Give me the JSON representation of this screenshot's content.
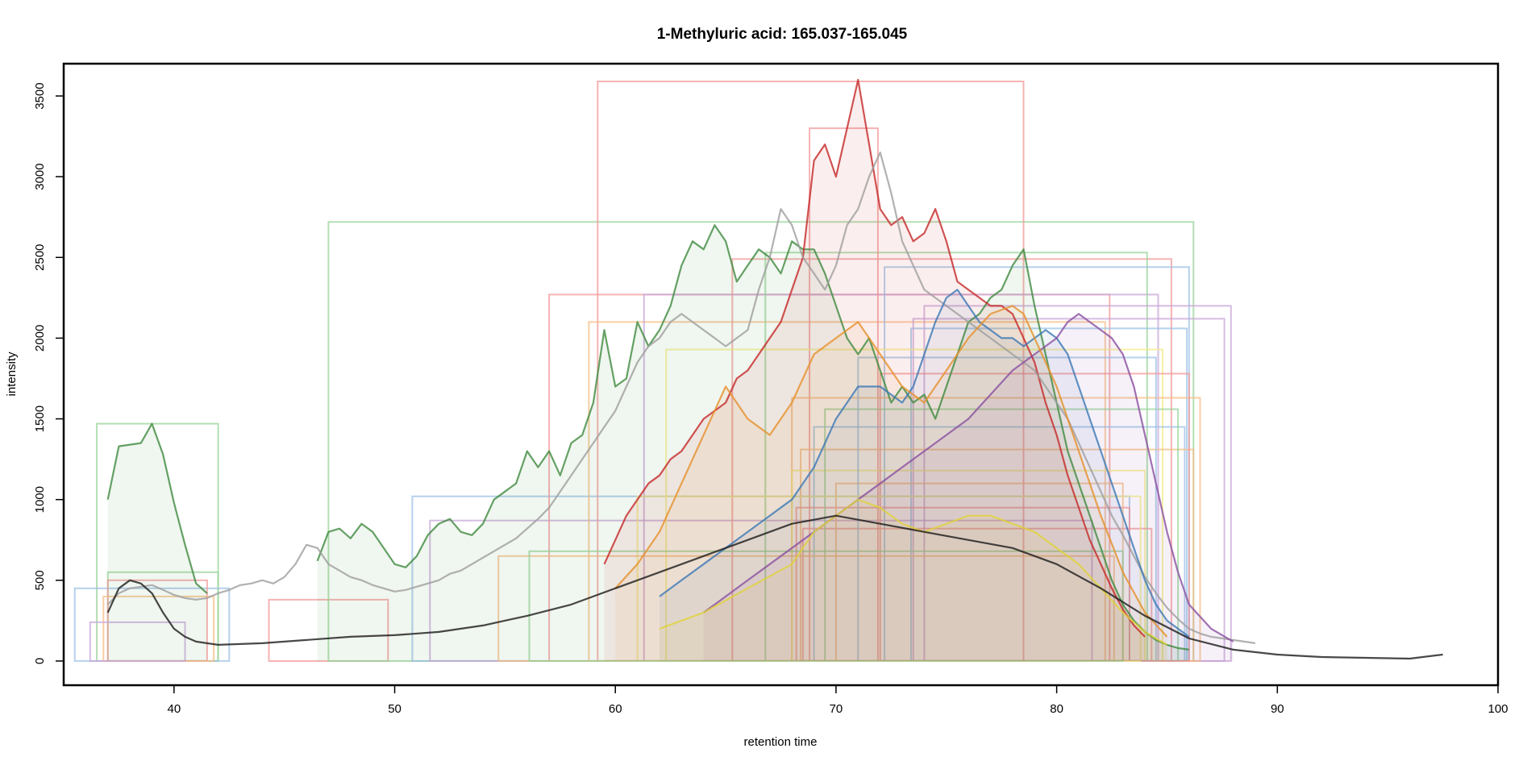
{
  "chart_data": {
    "type": "line",
    "title": "1-Methyluric acid: 165.037-165.045",
    "xlabel": "retention time",
    "ylabel": "intensity",
    "xlim": [
      35,
      100
    ],
    "ylim": [
      -150,
      3700
    ],
    "x_ticks": [
      40,
      50,
      60,
      70,
      80,
      90,
      100
    ],
    "y_ticks": [
      0,
      500,
      1000,
      1500,
      2000,
      2500,
      3000,
      3500
    ],
    "grid": false,
    "legend": "none",
    "colors": {
      "trace_gray": "#9e9e9e",
      "trace_black": "#1a1a1a",
      "green": "#3f8a3f",
      "red": "#c62828",
      "blue": "#3b78b5",
      "purple": "#8a4fa0",
      "orange": "#e6902a",
      "yellow": "#e0d23a",
      "box_green": "#9ad49a",
      "box_red": "#f29a9a",
      "box_blue": "#9cc1e6",
      "box_purple": "#c8a5d8",
      "box_orange": "#f5bd85",
      "box_yellow": "#f3ec8a"
    },
    "series": [
      {
        "color": "green",
        "x": [
          37,
          37.5,
          38,
          38.5,
          39,
          39.5,
          40,
          40.5,
          41,
          41.5
        ],
        "y": [
          1000,
          1330,
          1340,
          1350,
          1470,
          1280,
          980,
          720,
          480,
          420
        ]
      },
      {
        "color": "green",
        "x": [
          46.5,
          47,
          47.5,
          48,
          48.5,
          49,
          49.5,
          50,
          50.5,
          51,
          51.5,
          52,
          52.5,
          53,
          53.5,
          54,
          54.5,
          55,
          55.5,
          56,
          56.5,
          57,
          57.5,
          58,
          58.5,
          59,
          59.5,
          60,
          60.5,
          61,
          61.5,
          62,
          62.5,
          63,
          63.5,
          64,
          64.5,
          65,
          65.5,
          66,
          66.5,
          67,
          67.5,
          68,
          68.5,
          69,
          69.5,
          70,
          70.5,
          71,
          71.5,
          72,
          72.5,
          73,
          73.5,
          74,
          74.5,
          75,
          75.5,
          76,
          76.5,
          77,
          77.5,
          78,
          78.5,
          79,
          79.5,
          80,
          80.5,
          81,
          81.5,
          82,
          82.5,
          83,
          83.5,
          84,
          84.5,
          85,
          85.5,
          86
        ],
        "y": [
          620,
          800,
          820,
          760,
          850,
          800,
          700,
          600,
          580,
          650,
          780,
          850,
          880,
          800,
          780,
          850,
          1000,
          1050,
          1100,
          1300,
          1200,
          1300,
          1150,
          1350,
          1400,
          1600,
          2050,
          1700,
          1750,
          2100,
          1950,
          2050,
          2200,
          2450,
          2600,
          2550,
          2700,
          2600,
          2350,
          2450,
          2550,
          2500,
          2400,
          2600,
          2550,
          2550,
          2400,
          2200,
          2000,
          1900,
          2000,
          1800,
          1600,
          1700,
          1600,
          1650,
          1500,
          1700,
          1900,
          2100,
          2150,
          2250,
          2300,
          2450,
          2550,
          2200,
          1900,
          1600,
          1300,
          1100,
          900,
          700,
          500,
          350,
          250,
          180,
          130,
          100,
          80,
          70
        ]
      },
      {
        "color": "red",
        "x": [
          59.5,
          60,
          60.5,
          61,
          61.5,
          62,
          62.5,
          63,
          63.5,
          64,
          64.5,
          65,
          65.5,
          66,
          66.5,
          67,
          67.5,
          68,
          68.5,
          69,
          69.5,
          70,
          70.5,
          71,
          71.5,
          72,
          72.5,
          73,
          73.5,
          74,
          74.5,
          75,
          75.5,
          76,
          76.5,
          77,
          77.5,
          78,
          78.5,
          79,
          79.5,
          80,
          80.5,
          81,
          81.5,
          82,
          82.5,
          83,
          83.5,
          84
        ],
        "y": [
          600,
          750,
          900,
          1000,
          1100,
          1150,
          1250,
          1300,
          1400,
          1500,
          1550,
          1600,
          1750,
          1800,
          1900,
          2000,
          2100,
          2300,
          2500,
          3100,
          3200,
          3000,
          3300,
          3600,
          3200,
          2800,
          2700,
          2750,
          2600,
          2650,
          2800,
          2600,
          2350,
          2300,
          2250,
          2200,
          2200,
          2150,
          2000,
          1850,
          1600,
          1400,
          1150,
          950,
          750,
          600,
          450,
          320,
          220,
          150
        ]
      },
      {
        "color": "trace_gray",
        "x": [
          37,
          37.5,
          38,
          38.5,
          39,
          39.5,
          40,
          40.5,
          41,
          41.5,
          42,
          42.5,
          43,
          43.5,
          44,
          44.5,
          45,
          45.5,
          46,
          46.5,
          47,
          47.5,
          48,
          48.5,
          49,
          49.5,
          50,
          50.5,
          51,
          51.5,
          52,
          52.5,
          53,
          53.5,
          54,
          54.5,
          55,
          55.5,
          56,
          56.5,
          57,
          57.5,
          58,
          58.5,
          59,
          59.5,
          60,
          60.5,
          61,
          61.5,
          62,
          62.5,
          63,
          63.5,
          64,
          64.5,
          65,
          65.5,
          66,
          66.5,
          67,
          67.5,
          68,
          68.5,
          69,
          69.5,
          70,
          70.5,
          71,
          71.5,
          72,
          72.5,
          73,
          73.5,
          74,
          74.5,
          75,
          75.5,
          76,
          76.5,
          77,
          77.5,
          78,
          78.5,
          79,
          79.5,
          80,
          80.5,
          81,
          81.5,
          82,
          82.5,
          83,
          83.5,
          84,
          84.5,
          85,
          85.5,
          86,
          86.5,
          87,
          87.5,
          88,
          88.5,
          89
        ],
        "y": [
          350,
          420,
          450,
          460,
          470,
          440,
          410,
          390,
          380,
          390,
          420,
          440,
          470,
          480,
          500,
          480,
          520,
          600,
          720,
          700,
          600,
          560,
          520,
          500,
          470,
          450,
          430,
          440,
          460,
          480,
          500,
          540,
          560,
          600,
          640,
          680,
          720,
          760,
          820,
          880,
          950,
          1050,
          1150,
          1250,
          1350,
          1450,
          1550,
          1700,
          1850,
          1950,
          2000,
          2100,
          2150,
          2100,
          2050,
          2000,
          1950,
          2000,
          2050,
          2300,
          2500,
          2800,
          2700,
          2500,
          2400,
          2300,
          2450,
          2700,
          2800,
          3000,
          3150,
          2900,
          2600,
          2450,
          2300,
          2250,
          2200,
          2150,
          2100,
          2050,
          2000,
          1950,
          1900,
          1850,
          1800,
          1700,
          1600,
          1500,
          1350,
          1200,
          1050,
          900,
          780,
          650,
          520,
          420,
          330,
          260,
          200,
          170,
          150,
          140,
          130,
          120,
          110
        ]
      },
      {
        "color": "blue",
        "x": [
          62,
          63,
          64,
          65,
          66,
          67,
          68,
          69,
          70,
          71,
          72,
          72.5,
          73,
          73.5,
          74,
          74.5,
          75,
          75.5,
          76,
          76.5,
          77,
          77.5,
          78,
          78.5,
          79,
          79.5,
          80,
          80.5,
          81,
          81.5,
          82,
          82.5,
          83,
          83.5,
          84,
          84.5,
          85,
          86
        ],
        "y": [
          400,
          500,
          600,
          700,
          800,
          900,
          1000,
          1200,
          1500,
          1700,
          1700,
          1650,
          1600,
          1700,
          1900,
          2100,
          2250,
          2300,
          2200,
          2100,
          2050,
          2000,
          2000,
          1950,
          2000,
          2050,
          2000,
          1900,
          1700,
          1500,
          1300,
          1100,
          900,
          700,
          500,
          350,
          250,
          150
        ]
      },
      {
        "color": "purple",
        "x": [
          64,
          65,
          66,
          67,
          68,
          69,
          70,
          71,
          72,
          73,
          74,
          75,
          76,
          77,
          78,
          79,
          80,
          80.5,
          81,
          81.5,
          82,
          82.5,
          83,
          83.5,
          84,
          84.5,
          85,
          85.5,
          86,
          87,
          88
        ],
        "y": [
          300,
          400,
          500,
          600,
          700,
          800,
          900,
          1000,
          1100,
          1200,
          1300,
          1400,
          1500,
          1650,
          1800,
          1900,
          2000,
          2100,
          2150,
          2100,
          2050,
          2000,
          1900,
          1700,
          1400,
          1100,
          800,
          550,
          350,
          200,
          120
        ]
      },
      {
        "color": "orange",
        "x": [
          60,
          61,
          62,
          63,
          64,
          65,
          66,
          67,
          68,
          69,
          70,
          71,
          72,
          73,
          74,
          75,
          76,
          77,
          78,
          78.5,
          79,
          80,
          81,
          82,
          83,
          84,
          85
        ],
        "y": [
          450,
          600,
          800,
          1100,
          1400,
          1700,
          1500,
          1400,
          1600,
          1900,
          2000,
          2100,
          1900,
          1700,
          1600,
          1800,
          2000,
          2150,
          2200,
          2150,
          2000,
          1700,
          1300,
          900,
          550,
          300,
          150
        ]
      },
      {
        "color": "yellow",
        "x": [
          62,
          64,
          66,
          68,
          69,
          70,
          71,
          72,
          73,
          74,
          75,
          76,
          77,
          78,
          79,
          80,
          81,
          82,
          83,
          84,
          85
        ],
        "y": [
          200,
          300,
          450,
          600,
          800,
          900,
          1000,
          950,
          850,
          800,
          850,
          900,
          900,
          850,
          800,
          700,
          600,
          450,
          300,
          180,
          100
        ]
      },
      {
        "color": "trace_black",
        "x": [
          37,
          37.5,
          38,
          38.5,
          39,
          39.5,
          40,
          40.5,
          41,
          42,
          44,
          46,
          48,
          50,
          52,
          54,
          56,
          58,
          60,
          62,
          64,
          66,
          68,
          70,
          72,
          74,
          76,
          78,
          80,
          82,
          84,
          86,
          88,
          90,
          92,
          94,
          96,
          97.5
        ],
        "y": [
          300,
          450,
          500,
          480,
          420,
          300,
          200,
          150,
          120,
          100,
          110,
          130,
          150,
          160,
          180,
          220,
          280,
          350,
          450,
          550,
          650,
          750,
          850,
          900,
          850,
          800,
          750,
          700,
          600,
          450,
          280,
          140,
          70,
          40,
          25,
          20,
          15,
          40
        ]
      }
    ],
    "boxes": [
      {
        "color": "box_green",
        "x0": 36.5,
        "x1": 42,
        "y1": 1470
      },
      {
        "color": "box_green",
        "x0": 37,
        "x1": 42,
        "y1": 550
      },
      {
        "color": "box_blue",
        "x0": 35.5,
        "x1": 42.5,
        "y1": 450
      },
      {
        "color": "box_red",
        "x0": 37,
        "x1": 41.5,
        "y1": 500
      },
      {
        "color": "box_orange",
        "x0": 36.8,
        "x1": 41.8,
        "y1": 400
      },
      {
        "color": "box_purple",
        "x0": 36.2,
        "x1": 40.5,
        "y1": 240
      },
      {
        "color": "box_red",
        "x0": 44.3,
        "x1": 49.7,
        "y1": 380
      },
      {
        "color": "box_green",
        "x0": 47,
        "x1": 86.2,
        "y1": 2720
      },
      {
        "color": "box_blue",
        "x0": 50.8,
        "x1": 83.3,
        "y1": 1020
      },
      {
        "color": "box_purple",
        "x0": 51.6,
        "x1": 81.6,
        "y1": 870
      },
      {
        "color": "box_red",
        "x0": 59.2,
        "x1": 78.5,
        "y1": 3590
      },
      {
        "color": "box_red",
        "x0": 57,
        "x1": 82.4,
        "y1": 2270
      },
      {
        "color": "box_orange",
        "x0": 58.8,
        "x1": 82.2,
        "y1": 2100
      },
      {
        "color": "box_purple",
        "x0": 61.3,
        "x1": 84.6,
        "y1": 2270
      },
      {
        "color": "box_red",
        "x0": 65.3,
        "x1": 85.2,
        "y1": 2490
      },
      {
        "color": "box_green",
        "x0": 66.8,
        "x1": 84.1,
        "y1": 2530
      },
      {
        "color": "box_red",
        "x0": 68.8,
        "x1": 71.9,
        "y1": 3300
      },
      {
        "color": "box_blue",
        "x0": 72.2,
        "x1": 86,
        "y1": 2440
      },
      {
        "color": "box_purple",
        "x0": 74,
        "x1": 87.9,
        "y1": 2200
      },
      {
        "color": "box_purple",
        "x0": 73.5,
        "x1": 87.6,
        "y1": 2120
      },
      {
        "color": "box_blue",
        "x0": 73.4,
        "x1": 85.9,
        "y1": 2060
      },
      {
        "color": "box_yellow",
        "x0": 62.3,
        "x1": 84.8,
        "y1": 1930
      },
      {
        "color": "box_orange",
        "x0": 68,
        "x1": 86.5,
        "y1": 1630
      },
      {
        "color": "box_blue",
        "x0": 69,
        "x1": 85.8,
        "y1": 1450
      },
      {
        "color": "box_orange",
        "x0": 68.4,
        "x1": 86.2,
        "y1": 1310
      },
      {
        "color": "box_red",
        "x0": 68.2,
        "x1": 83.3,
        "y1": 950
      },
      {
        "color": "box_yellow",
        "x0": 68,
        "x1": 84,
        "y1": 1180
      },
      {
        "color": "box_red",
        "x0": 68.5,
        "x1": 84.3,
        "y1": 820
      },
      {
        "color": "box_green",
        "x0": 69.5,
        "x1": 85.5,
        "y1": 1560
      },
      {
        "color": "box_orange",
        "x0": 70,
        "x1": 83,
        "y1": 1100
      },
      {
        "color": "box_blue",
        "x0": 71,
        "x1": 84.5,
        "y1": 1880
      },
      {
        "color": "box_red",
        "x0": 72,
        "x1": 86,
        "y1": 1780
      },
      {
        "color": "box_yellow",
        "x0": 61,
        "x1": 83.8,
        "y1": 1020
      },
      {
        "color": "box_orange",
        "x0": 54.7,
        "x1": 82.6,
        "y1": 650
      },
      {
        "color": "box_green",
        "x0": 56.1,
        "x1": 83,
        "y1": 680
      }
    ]
  }
}
